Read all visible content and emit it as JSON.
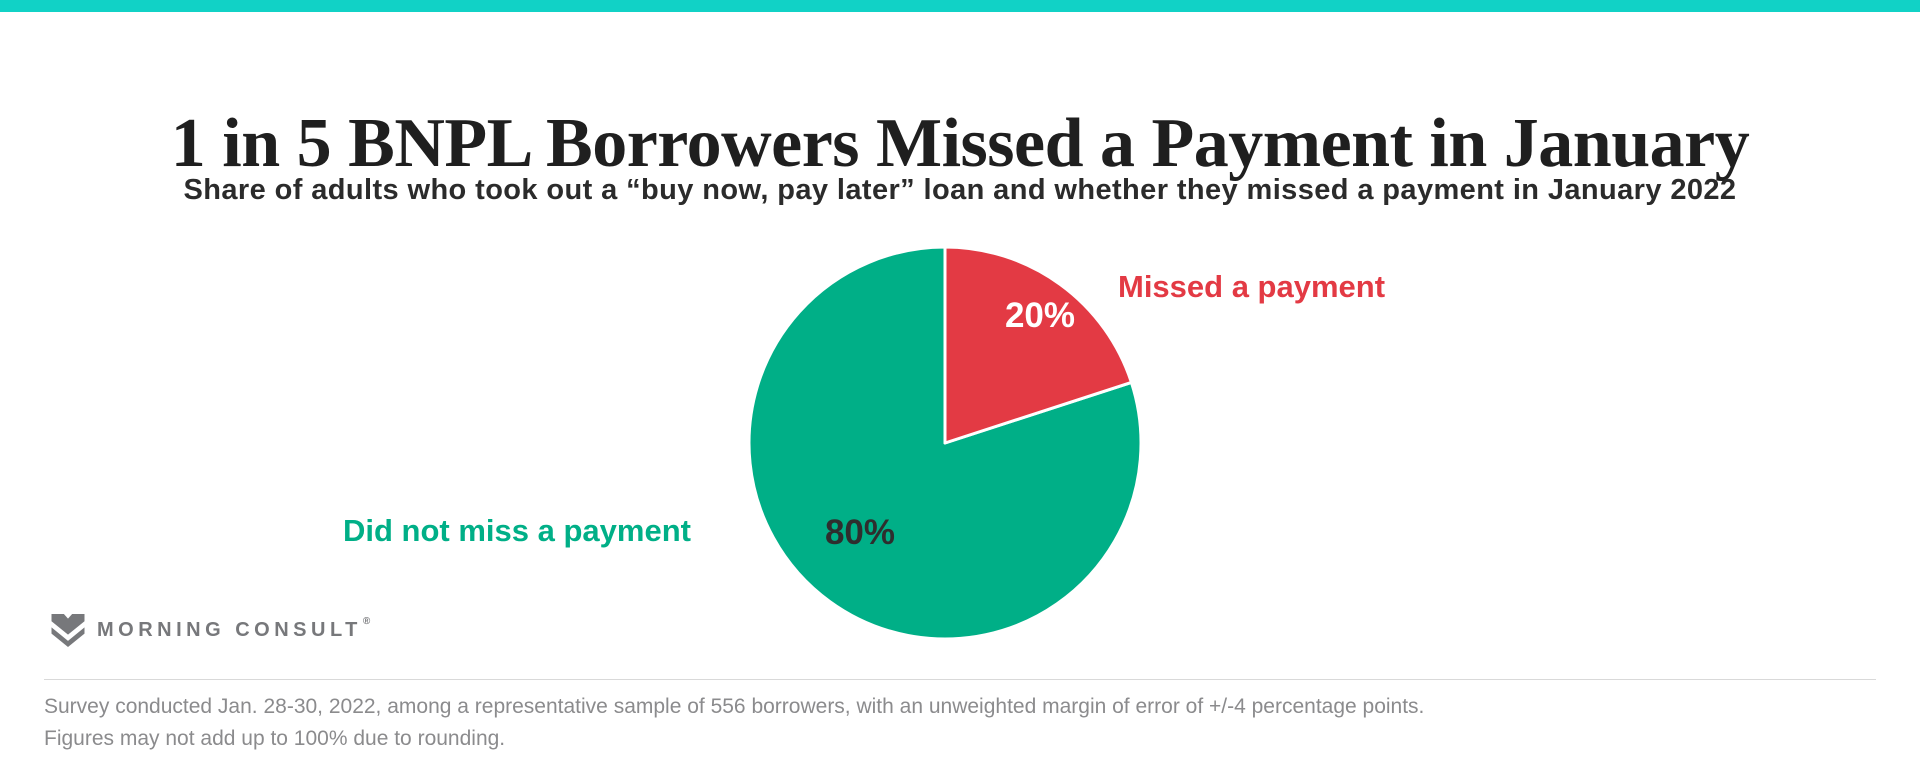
{
  "top_bar": {
    "color": "#11d2c6"
  },
  "header": {
    "title": "1 in 5 BNPL Borrowers Missed a Payment in January",
    "subtitle": "Share of adults who took out a “buy now, pay later” loan and whether they missed a payment in January 2022"
  },
  "chart_data": {
    "type": "pie",
    "title": "1 in 5 BNPL Borrowers Missed a Payment in January",
    "subtitle": "Share of adults who took out a “buy now, pay later” loan and whether they missed a payment in January 2022",
    "start_angle_deg": 0,
    "direction": "clockwise",
    "legend_position": "outside-callout-labels",
    "slices": [
      {
        "label": "Missed a payment",
        "value": 20,
        "value_display": "20%",
        "color": "#e33a44",
        "label_color": "#e33a44",
        "value_label_color": "#ffffff"
      },
      {
        "label": "Did not miss a payment",
        "value": 80,
        "value_display": "80%",
        "color": "#00af87",
        "label_color": "#00af87",
        "value_label_color": "#2e2e2e"
      }
    ]
  },
  "logo": {
    "text": "MORNING CONSULT",
    "trademark": "®",
    "color": "#77787b"
  },
  "footer": {
    "line1": "Survey conducted Jan. 28-30, 2022, among a representative sample of 556 borrowers, with an unweighted margin of error of +/-4 percentage points.",
    "line2": "Figures may not add up to 100% due to rounding."
  }
}
